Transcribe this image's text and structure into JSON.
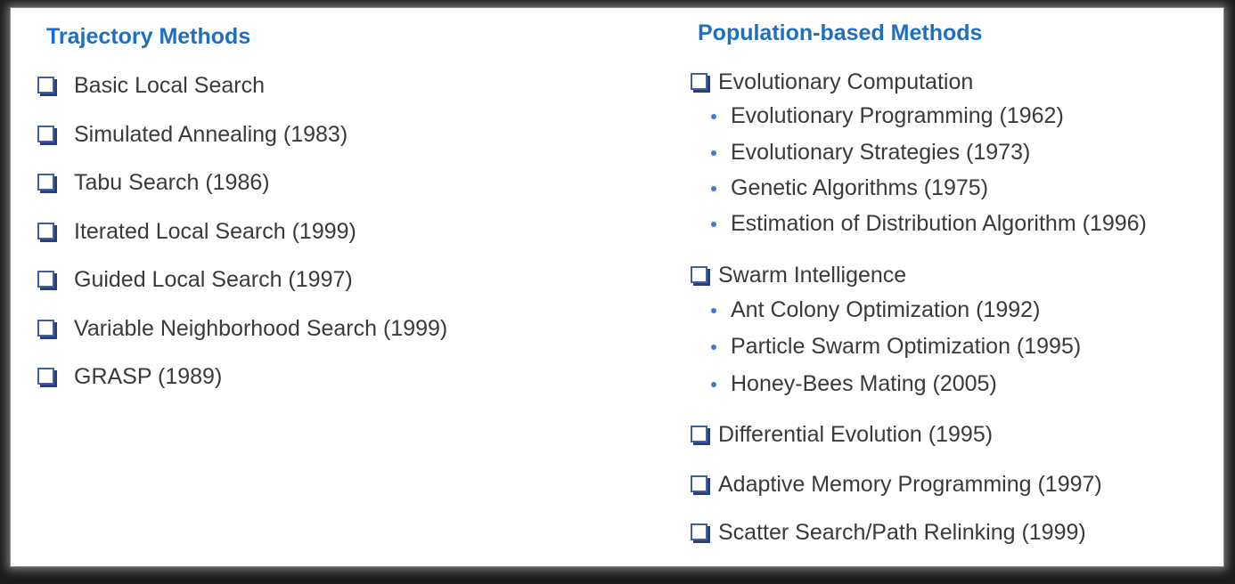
{
  "left": {
    "heading": "Trajectory Methods",
    "items": [
      "Basic Local Search",
      "Simulated Annealing (1983)",
      "Tabu Search (1986)",
      "Iterated Local Search (1999)",
      "Guided Local Search (1997)",
      "Variable Neighborhood Search (1999)",
      "GRASP (1989)"
    ]
  },
  "right": {
    "heading": "Population-based Methods",
    "groups": [
      {
        "label": "Evolutionary Computation",
        "subitems": [
          "Evolutionary Programming (1962)",
          "Evolutionary Strategies (1973)",
          "Genetic Algorithms (1975)",
          "Estimation of Distribution Algorithm (1996)"
        ]
      },
      {
        "label": "Swarm Intelligence",
        "subitems": [
          "Ant Colony Optimization (1992)",
          "Particle Swarm Optimization (1995)",
          "Honey-Bees Mating (2005)"
        ]
      },
      {
        "label": "Differential Evolution (1995)",
        "subitems": []
      },
      {
        "label": "Adaptive Memory Programming (1997)",
        "subitems": []
      },
      {
        "label": "Scatter Search/Path Relinking (1999)",
        "subitems": []
      }
    ]
  }
}
